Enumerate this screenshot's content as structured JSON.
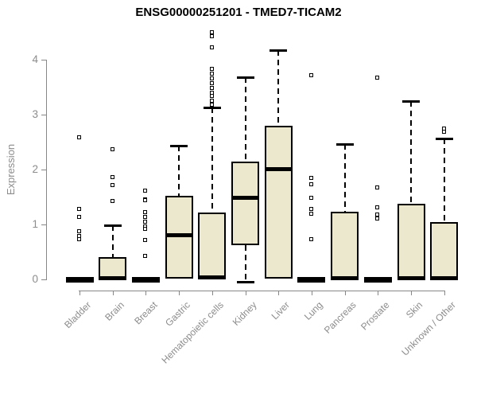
{
  "chart_data": {
    "type": "boxplot",
    "title": "ENSG00000251201 - TMED7-TICAM2",
    "ylabel": "Expression",
    "xlabel": "",
    "ylim": [
      0,
      4.55
    ],
    "yticks": [
      0,
      1,
      2,
      3,
      4
    ],
    "grid": false,
    "legend": "none",
    "colors": {
      "box_fill": "#ece8ce",
      "box_border": "#000000",
      "median": "#000000",
      "axis": "#878787",
      "tick_label": "#8c8c8c",
      "title": "#000000",
      "background": "#ffffff"
    },
    "categories": [
      "Bladder",
      "Brain",
      "Breast",
      "Gastric",
      "Hematopoietic cells",
      "Kidney",
      "Liver",
      "Lung",
      "Pancreas",
      "Prostate",
      "Skin",
      "Unknown / Other"
    ],
    "series": [
      {
        "name": "Bladder",
        "flat": true,
        "q1": 0,
        "median": 0.02,
        "q3": 0.04,
        "whisker_low": null,
        "whisker_high": null,
        "outliers": [
          2.58,
          1.28,
          1.13,
          0.87,
          0.78,
          0.72
        ]
      },
      {
        "name": "Brain",
        "flat": false,
        "q1": 0.01,
        "median": 0.03,
        "q3": 0.41,
        "whisker_low": null,
        "whisker_high": 0.99,
        "outliers": [
          2.36,
          1.85,
          1.71,
          1.42
        ]
      },
      {
        "name": "Breast",
        "flat": true,
        "q1": 0,
        "median": 0.02,
        "q3": 0.04,
        "whisker_low": null,
        "whisker_high": null,
        "outliers": [
          1.61,
          1.45,
          1.43,
          1.22,
          1.13,
          1.04,
          0.96,
          0.91,
          0.71,
          0.42
        ]
      },
      {
        "name": "Gastric",
        "flat": false,
        "q1": 0.02,
        "median": 0.81,
        "q3": 1.52,
        "whisker_low": null,
        "whisker_high": 2.43,
        "outliers": []
      },
      {
        "name": "Hematopoietic cells",
        "flat": false,
        "q1": 0.02,
        "median": 0.05,
        "q3": 1.22,
        "whisker_low": null,
        "whisker_high": 3.13,
        "outliers": [
          4.49,
          4.42,
          4.22,
          3.83,
          3.74,
          3.65,
          3.57,
          3.48,
          3.39,
          3.33,
          3.25,
          3.17
        ]
      },
      {
        "name": "Kidney",
        "flat": false,
        "q1": 0.63,
        "median": 1.5,
        "q3": 2.14,
        "whisker_low": 0,
        "whisker_high": 3.68,
        "outliers": []
      },
      {
        "name": "Liver",
        "flat": false,
        "q1": 0.02,
        "median": 2.02,
        "q3": 2.8,
        "whisker_low": null,
        "whisker_high": 4.17,
        "outliers": []
      },
      {
        "name": "Lung",
        "flat": true,
        "q1": 0,
        "median": 0.02,
        "q3": 0.04,
        "whisker_low": null,
        "whisker_high": null,
        "outliers": [
          3.71,
          1.84,
          1.73,
          1.48,
          1.27,
          1.19,
          0.73
        ]
      },
      {
        "name": "Pancreas",
        "flat": false,
        "q1": 0.01,
        "median": 0.03,
        "q3": 1.23,
        "whisker_low": null,
        "whisker_high": 2.46,
        "outliers": []
      },
      {
        "name": "Prostate",
        "flat": true,
        "q1": 0,
        "median": 0.02,
        "q3": 0.04,
        "whisker_low": null,
        "whisker_high": null,
        "outliers": [
          3.67,
          1.66,
          1.3,
          1.17,
          1.1
        ]
      },
      {
        "name": "Skin",
        "flat": false,
        "q1": 0.01,
        "median": 0.03,
        "q3": 1.38,
        "whisker_low": null,
        "whisker_high": 3.25,
        "outliers": []
      },
      {
        "name": "Unknown / Other",
        "flat": false,
        "q1": 0.01,
        "median": 0.03,
        "q3": 1.04,
        "whisker_low": null,
        "whisker_high": 2.57,
        "outliers": [
          2.74,
          2.68
        ]
      }
    ]
  }
}
